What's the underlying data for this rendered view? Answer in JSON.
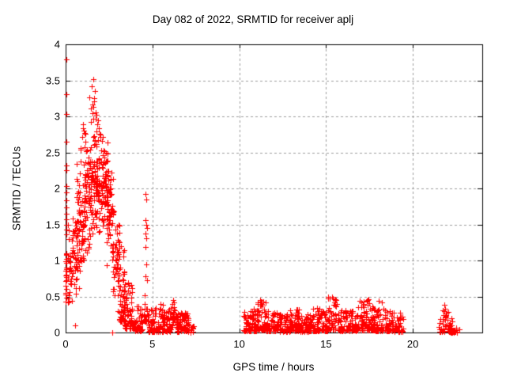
{
  "page": {
    "background": "#ffffff",
    "text_color": "#000000"
  },
  "chart_data": {
    "type": "scatter",
    "title": "Day 082 of 2022, SRMTID for receiver aplj",
    "xlabel": "GPS time / hours",
    "ylabel": "SRMTID / TECUs",
    "xlim": [
      0,
      24
    ],
    "ylim": [
      0,
      4
    ],
    "x_ticks": [
      0,
      5,
      10,
      15,
      20
    ],
    "x_tick_labels": [
      "0",
      "5",
      "10",
      "15",
      "20"
    ],
    "y_ticks": [
      0,
      0.5,
      1,
      1.5,
      2,
      2.5,
      3,
      3.5,
      4
    ],
    "y_tick_labels": [
      "0",
      "0.5",
      "1",
      "1.5",
      "2",
      "2.5",
      "3",
      "3.5",
      "4"
    ],
    "grid": true,
    "grid_color": "#9e9e9e",
    "axis_color": "#000000",
    "marker": "plus",
    "marker_color": "#ff0000",
    "marker_size_px": 7,
    "legend": "none",
    "notable_points": [
      [
        0.03,
        3.79
      ],
      [
        0.04,
        3.31
      ],
      [
        0.03,
        3.03
      ],
      [
        0.05,
        2.65
      ],
      [
        0.04,
        2.32
      ],
      [
        0.05,
        2.25
      ],
      [
        0.03,
        2.03
      ],
      [
        0.06,
        1.95
      ],
      [
        0.04,
        1.84
      ],
      [
        0.05,
        1.74
      ],
      [
        0.03,
        1.65
      ],
      [
        0.06,
        1.57
      ],
      [
        0.04,
        1.5
      ],
      [
        0.03,
        1.43
      ],
      [
        0.05,
        1.36
      ],
      [
        0.15,
        1.5
      ],
      [
        0.2,
        1.42
      ],
      [
        0.18,
        1.3
      ],
      [
        0.55,
        0.1
      ],
      [
        2.68,
        0.0
      ],
      [
        1.59,
        3.52
      ],
      [
        1.5,
        3.42
      ],
      [
        1.68,
        3.35
      ],
      [
        1.55,
        3.16
      ],
      [
        1.62,
        3.21
      ],
      [
        1.45,
        3.11
      ],
      [
        1.72,
        3.06
      ],
      [
        1.78,
        3.02
      ],
      [
        1.73,
        2.97
      ],
      [
        1.86,
        2.95
      ],
      [
        1.82,
        2.89
      ],
      [
        1.9,
        2.84
      ],
      [
        4.62,
        1.92
      ],
      [
        4.66,
        1.85
      ],
      [
        4.6,
        1.56
      ],
      [
        4.63,
        1.5
      ],
      [
        4.67,
        1.45
      ],
      [
        4.61,
        1.37
      ],
      [
        4.64,
        1.31
      ],
      [
        4.6,
        1.19
      ],
      [
        4.65,
        0.95
      ],
      [
        4.62,
        0.78
      ],
      [
        4.68,
        0.73
      ],
      [
        6.2,
        0.45
      ],
      [
        6.23,
        0.42
      ],
      [
        6.17,
        0.4
      ],
      [
        11.2,
        0.45
      ],
      [
        11.25,
        0.43
      ],
      [
        15.35,
        0.5
      ],
      [
        15.4,
        0.47
      ],
      [
        16.95,
        0.44
      ],
      [
        17.45,
        0.46
      ],
      [
        18.05,
        0.44
      ],
      [
        21.8,
        0.38
      ],
      [
        21.72,
        0.31
      ],
      [
        21.85,
        0.33
      ]
    ],
    "clusters": [
      {
        "x0": 0.0,
        "x1": 0.07,
        "y0": 0.4,
        "y1": 1.3,
        "n": 26,
        "dist": "mid"
      },
      {
        "x0": 0.08,
        "x1": 0.35,
        "y0": 0.4,
        "y1": 1.1,
        "n": 14,
        "dist": "low"
      },
      {
        "x0": 0.2,
        "x1": 0.5,
        "y0": 0.5,
        "y1": 1.55,
        "n": 16,
        "dist": "mid"
      },
      {
        "x0": 0.35,
        "x1": 0.75,
        "y0": 0.3,
        "y1": 1.7,
        "n": 30,
        "dist": "mid"
      },
      {
        "x0": 0.6,
        "x1": 1.05,
        "y0": 0.45,
        "y1": 2.5,
        "n": 70,
        "dist": "mid"
      },
      {
        "x0": 0.8,
        "x1": 1.15,
        "y0": 2.5,
        "y1": 2.9,
        "n": 9,
        "dist": "uniform"
      },
      {
        "x0": 1.05,
        "x1": 1.5,
        "y0": 0.9,
        "y1": 2.9,
        "n": 75,
        "dist": "mid"
      },
      {
        "x0": 1.35,
        "x1": 1.65,
        "y0": 2.9,
        "y1": 3.3,
        "n": 6,
        "dist": "uniform"
      },
      {
        "x0": 1.45,
        "x1": 2.0,
        "y0": 1.2,
        "y1": 3.0,
        "n": 95,
        "dist": "mid"
      },
      {
        "x0": 2.0,
        "x1": 2.45,
        "y0": 1.4,
        "y1": 2.8,
        "n": 75,
        "dist": "mid"
      },
      {
        "x0": 2.35,
        "x1": 2.75,
        "y0": 0.9,
        "y1": 2.45,
        "n": 55,
        "dist": "mid"
      },
      {
        "x0": 2.7,
        "x1": 3.1,
        "y0": 0.45,
        "y1": 1.7,
        "n": 45,
        "dist": "mid"
      },
      {
        "x0": 3.0,
        "x1": 3.45,
        "y0": 0.15,
        "y1": 1.15,
        "n": 55,
        "dist": "low"
      },
      {
        "x0": 3.05,
        "x1": 3.3,
        "y0": 1.1,
        "y1": 1.35,
        "n": 4,
        "dist": "uniform"
      },
      {
        "x0": 3.3,
        "x1": 3.85,
        "y0": 0.05,
        "y1": 0.7,
        "n": 75,
        "dist": "low"
      },
      {
        "x0": 3.85,
        "x1": 4.45,
        "y0": 0.02,
        "y1": 0.38,
        "n": 42,
        "dist": "low"
      },
      {
        "x0": 4.5,
        "x1": 4.78,
        "y0": 0.15,
        "y1": 0.65,
        "n": 22,
        "dist": "low"
      },
      {
        "x0": 4.78,
        "x1": 6.05,
        "y0": 0.01,
        "y1": 0.32,
        "n": 120,
        "dist": "low"
      },
      {
        "x0": 5.0,
        "x1": 6.0,
        "y0": 0.28,
        "y1": 0.42,
        "n": 8,
        "dist": "uniform"
      },
      {
        "x0": 6.05,
        "x1": 6.4,
        "y0": 0.05,
        "y1": 0.44,
        "n": 28,
        "dist": "mid"
      },
      {
        "x0": 6.4,
        "x1": 7.1,
        "y0": 0.01,
        "y1": 0.28,
        "n": 80,
        "dist": "low"
      },
      {
        "x0": 7.05,
        "x1": 7.38,
        "y0": 0.0,
        "y1": 0.15,
        "n": 16,
        "dist": "low"
      },
      {
        "x0": 10.25,
        "x1": 10.7,
        "y0": 0.02,
        "y1": 0.3,
        "n": 40,
        "dist": "low"
      },
      {
        "x0": 10.7,
        "x1": 11.05,
        "y0": 0.02,
        "y1": 0.35,
        "n": 35,
        "dist": "low"
      },
      {
        "x0": 11.05,
        "x1": 11.55,
        "y0": 0.03,
        "y1": 0.44,
        "n": 45,
        "dist": "low"
      },
      {
        "x0": 11.55,
        "x1": 12.2,
        "y0": 0.02,
        "y1": 0.3,
        "n": 55,
        "dist": "low"
      },
      {
        "x0": 12.2,
        "x1": 12.9,
        "y0": 0.01,
        "y1": 0.26,
        "n": 60,
        "dist": "low"
      },
      {
        "x0": 12.9,
        "x1": 13.45,
        "y0": 0.02,
        "y1": 0.33,
        "n": 50,
        "dist": "low"
      },
      {
        "x0": 13.45,
        "x1": 14.15,
        "y0": 0.01,
        "y1": 0.26,
        "n": 60,
        "dist": "low"
      },
      {
        "x0": 14.15,
        "x1": 14.65,
        "y0": 0.02,
        "y1": 0.35,
        "n": 45,
        "dist": "low"
      },
      {
        "x0": 14.65,
        "x1": 15.1,
        "y0": 0.02,
        "y1": 0.3,
        "n": 40,
        "dist": "low"
      },
      {
        "x0": 15.1,
        "x1": 15.65,
        "y0": 0.04,
        "y1": 0.5,
        "n": 50,
        "dist": "low"
      },
      {
        "x0": 15.65,
        "x1": 16.3,
        "y0": 0.02,
        "y1": 0.32,
        "n": 55,
        "dist": "low"
      },
      {
        "x0": 16.3,
        "x1": 16.75,
        "y0": 0.02,
        "y1": 0.3,
        "n": 40,
        "dist": "low"
      },
      {
        "x0": 16.75,
        "x1": 17.25,
        "y0": 0.03,
        "y1": 0.43,
        "n": 45,
        "dist": "low"
      },
      {
        "x0": 17.25,
        "x1": 17.7,
        "y0": 0.03,
        "y1": 0.45,
        "n": 45,
        "dist": "low"
      },
      {
        "x0": 17.7,
        "x1": 18.35,
        "y0": 0.02,
        "y1": 0.42,
        "n": 55,
        "dist": "low"
      },
      {
        "x0": 18.35,
        "x1": 18.9,
        "y0": 0.02,
        "y1": 0.32,
        "n": 45,
        "dist": "low"
      },
      {
        "x0": 18.9,
        "x1": 19.45,
        "y0": 0.01,
        "y1": 0.28,
        "n": 40,
        "dist": "low"
      },
      {
        "x0": 21.5,
        "x1": 22.3,
        "y0": 0.01,
        "y1": 0.25,
        "n": 45,
        "dist": "low"
      },
      {
        "x0": 21.75,
        "x1": 22.05,
        "y0": 0.22,
        "y1": 0.32,
        "n": 6,
        "dist": "uniform"
      },
      {
        "x0": 22.0,
        "x1": 22.7,
        "y0": 0.0,
        "y1": 0.07,
        "n": 28,
        "dist": "low"
      }
    ]
  }
}
